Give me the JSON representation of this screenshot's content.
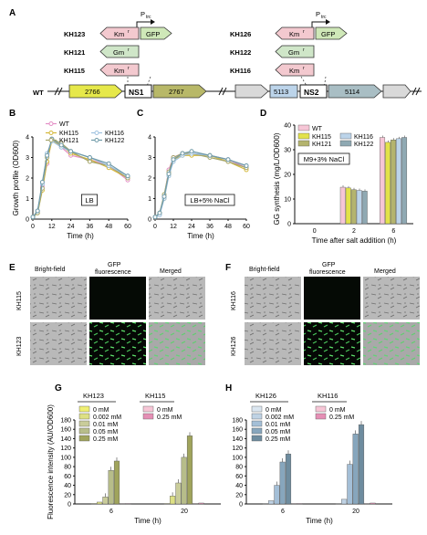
{
  "panel_letters": {
    "A": "A",
    "B": "B",
    "C": "C",
    "D": "D",
    "E": "E",
    "F": "F",
    "G": "G",
    "H": "H"
  },
  "panel_a": {
    "promoter": "P",
    "promoter_sub": "trc",
    "left_strains": [
      "KH123",
      "KH121",
      "KH115"
    ],
    "right_strains": [
      "KH126",
      "KH122",
      "KH116"
    ],
    "km_label": "Km",
    "km_sup": "r",
    "gm_label": "Gm",
    "gm_sup": "r",
    "gfp_label": "GFP",
    "wt_label": "WT",
    "genes": [
      "2766",
      "NS1",
      "2767",
      "5113",
      "NS2",
      "5114"
    ],
    "colors": {
      "km": "#f3c9cf",
      "gm": "#cfe6c8",
      "gfp": "#cfe8b8",
      "g2766": "#e6e84a",
      "g2767": "#b8b868",
      "g5113": "#bcd4ea",
      "g5114": "#a9bec4",
      "gray": "#d9d9d9"
    }
  },
  "chart_data": [
    {
      "panel": "B",
      "type": "line",
      "ylabel": "Growth profile (OD600)",
      "xlabel": "Time (h)",
      "box_label": "LB",
      "x": [
        0,
        3,
        6,
        9,
        12,
        18,
        24,
        36,
        48,
        60
      ],
      "xticks": [
        0,
        12,
        24,
        36,
        48,
        60
      ],
      "yticks": [
        0,
        1,
        2,
        3,
        4
      ],
      "ylim": [
        0,
        4
      ],
      "series": [
        {
          "name": "WT",
          "color": "#e48fc6",
          "values": [
            0.1,
            0.4,
            1.6,
            2.7,
            3.9,
            3.5,
            3.1,
            2.9,
            2.6,
            1.9
          ]
        },
        {
          "name": "KH115",
          "color": "#d4b83b",
          "values": [
            0.1,
            0.3,
            1.4,
            2.8,
            3.8,
            3.6,
            3.2,
            2.9,
            2.5,
            2.0
          ]
        },
        {
          "name": "KH121",
          "color": "#a5a56a",
          "values": [
            0.1,
            0.3,
            1.5,
            3.0,
            3.9,
            3.7,
            3.3,
            2.8,
            2.6,
            2.0
          ]
        },
        {
          "name": "KH116",
          "color": "#9fc2e0",
          "values": [
            0.1,
            0.4,
            1.7,
            3.2,
            3.8,
            3.5,
            3.3,
            3.0,
            2.6,
            2.1
          ]
        },
        {
          "name": "KH122",
          "color": "#6f9aa8",
          "values": [
            0.1,
            0.4,
            1.8,
            3.1,
            3.9,
            3.6,
            3.3,
            3.0,
            2.7,
            2.1
          ]
        }
      ]
    },
    {
      "panel": "C",
      "type": "line",
      "xlabel": "Time (h)",
      "box_label": "LB+5% NaCl",
      "x": [
        0,
        3,
        6,
        9,
        12,
        18,
        24,
        36,
        48,
        60
      ],
      "xticks": [
        0,
        12,
        24,
        36,
        48,
        60
      ],
      "ylim": [
        0,
        4
      ],
      "series": [
        {
          "name": "WT",
          "color": "#e48fc6",
          "values": [
            0.1,
            0.3,
            1.1,
            2.4,
            3.0,
            3.2,
            3.2,
            3.1,
            2.9,
            2.5
          ]
        },
        {
          "name": "KH115",
          "color": "#d4b83b",
          "values": [
            0.1,
            0.3,
            1.0,
            2.2,
            2.9,
            3.1,
            3.1,
            3.1,
            2.8,
            2.4
          ]
        },
        {
          "name": "KH121",
          "color": "#a5a56a",
          "values": [
            0.1,
            0.3,
            1.2,
            2.3,
            3.0,
            3.2,
            3.2,
            3.0,
            2.8,
            2.5
          ]
        },
        {
          "name": "KH116",
          "color": "#9fc2e0",
          "values": [
            0.1,
            0.2,
            1.0,
            2.1,
            2.8,
            3.1,
            3.2,
            3.1,
            2.9,
            2.6
          ]
        },
        {
          "name": "KH122",
          "color": "#6f9aa8",
          "values": [
            0.1,
            0.3,
            1.1,
            2.2,
            2.9,
            3.2,
            3.3,
            3.1,
            2.9,
            2.6
          ]
        }
      ]
    },
    {
      "panel": "D",
      "type": "bar",
      "ylabel": "GG synthesis (mg/L/OD600)",
      "xlabel": "Time after salt addition (h)",
      "box_label": "M9+3% NaCl",
      "categories": [
        "0",
        "2",
        "6"
      ],
      "yticks": [
        0,
        10,
        20,
        30,
        40
      ],
      "ylim": [
        0,
        40
      ],
      "series": [
        {
          "name": "WT",
          "color": "#f6c6d6",
          "values": [
            0,
            14.8,
            35.0
          ]
        },
        {
          "name": "KH115",
          "color": "#e2e24a",
          "values": [
            0,
            14.5,
            33.0
          ]
        },
        {
          "name": "KH121",
          "color": "#b4b46e",
          "values": [
            0,
            13.8,
            34.0
          ]
        },
        {
          "name": "KH116",
          "color": "#bcd4ea",
          "values": [
            0,
            13.5,
            34.5
          ]
        },
        {
          "name": "KH122",
          "color": "#8fa9b3",
          "values": [
            0,
            13.2,
            35.0
          ]
        }
      ]
    },
    {
      "panel": "G",
      "type": "bar",
      "ylabel": "Fluorescence intensity (AU/OD600)",
      "xlabel": "Time (h)",
      "categories": [
        "6",
        "20"
      ],
      "yticks": [
        0,
        20,
        40,
        60,
        80,
        100,
        120,
        140,
        160,
        180
      ],
      "ylim": [
        0,
        180
      ],
      "group_labels": [
        "KH123",
        "KH115"
      ],
      "series": [
        {
          "name": "0 mM",
          "color": "#efef73",
          "values": [
            1,
            1
          ]
        },
        {
          "name": "0.002 mM",
          "color": "#dde084",
          "values": [
            4,
            17
          ]
        },
        {
          "name": "0.01 mM",
          "color": "#c9cc9a",
          "values": [
            15,
            45
          ]
        },
        {
          "name": "0.05 mM",
          "color": "#b7bd8a",
          "values": [
            72,
            100
          ]
        },
        {
          "name": "0.25 mM",
          "color": "#a0a45c",
          "values": [
            92,
            146
          ]
        },
        {
          "name": "0 mM",
          "color": "#f6c6d6",
          "values": [
            1,
            1
          ]
        },
        {
          "name": "0.25 mM",
          "color": "#e58fb5",
          "values": [
            1,
            2
          ]
        }
      ]
    },
    {
      "panel": "H",
      "type": "bar",
      "xlabel": "Time (h)",
      "categories": [
        "6",
        "20"
      ],
      "yticks": [
        0,
        20,
        40,
        60,
        80,
        100,
        120,
        140,
        160,
        180
      ],
      "ylim": [
        0,
        180
      ],
      "group_labels": [
        "KH126",
        "KH116"
      ],
      "series": [
        {
          "name": "0 mM",
          "color": "#dbe6f0",
          "values": [
            1,
            1
          ]
        },
        {
          "name": "0.002 mM",
          "color": "#bfd2e4",
          "values": [
            7,
            10
          ]
        },
        {
          "name": "0.01 mM",
          "color": "#a4bfd7",
          "values": [
            40,
            85
          ]
        },
        {
          "name": "0.05 mM",
          "color": "#87a6bd",
          "values": [
            90,
            150
          ]
        },
        {
          "name": "0.25 mM",
          "color": "#6e8c9f",
          "values": [
            107,
            170
          ]
        },
        {
          "name": "0 mM",
          "color": "#f6c6d6",
          "values": [
            1,
            1
          ]
        },
        {
          "name": "0.25 mM",
          "color": "#e58fb5",
          "values": [
            1,
            2
          ]
        }
      ]
    }
  ],
  "micro": {
    "headers": [
      "Bright-field",
      "GFP",
      "fluorescence",
      "Merged"
    ],
    "left_rows": [
      "KH115",
      "KH123"
    ],
    "right_rows": [
      "KH116",
      "KH126"
    ]
  }
}
